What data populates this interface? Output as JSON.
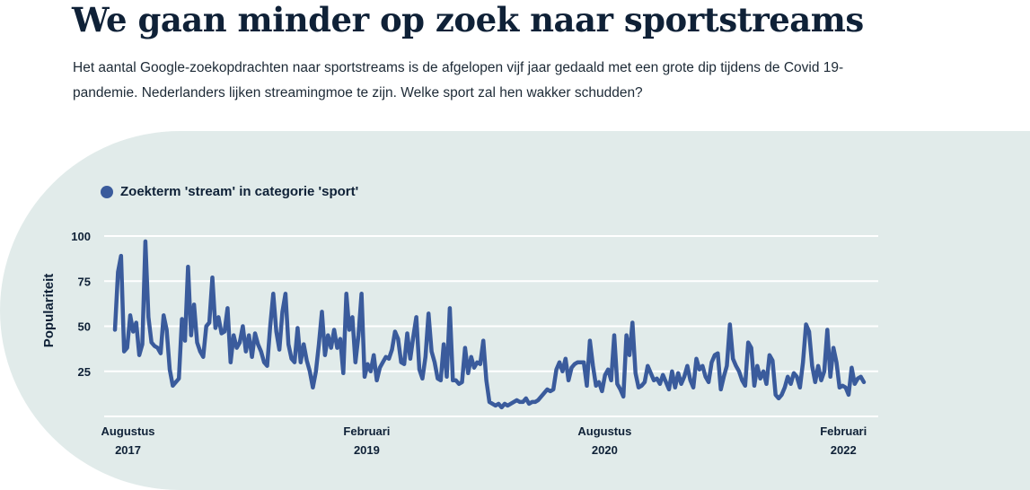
{
  "title": "We gaan minder op zoek naar sportstreams",
  "subtitle": "Het aantal Google-zoekopdrachten naar sportstreams is de afgelopen vijf jaar gedaald met een grote dip tijdens de Covid 19-pandemie. Nederlanders lijken streamingmoe te zijn. Welke sport zal hen wakker schudden?",
  "colors": {
    "line": "#3a5b9c",
    "panel": "#e1ebea",
    "text": "#0f2137"
  },
  "chart_data": {
    "type": "line",
    "ylabel": "Populariteit",
    "ylim": [
      0,
      100
    ],
    "yticks": [
      25,
      50,
      75,
      100
    ],
    "grid": true,
    "legend_position": "top-left",
    "xlim": [
      "2017-07-02",
      "2022-03-20"
    ],
    "xticks": [
      {
        "date": "2017-08-01",
        "month": "Augustus",
        "year": "2017"
      },
      {
        "date": "2019-02-01",
        "month": "Februari",
        "year": "2019"
      },
      {
        "date": "2020-08-01",
        "month": "Augustus",
        "year": "2020"
      },
      {
        "date": "2022-02-01",
        "month": "Februari",
        "year": "2022"
      }
    ],
    "series": [
      {
        "name": "Zoekterm 'stream' in categorie 'sport'",
        "color": "#3a5b9c",
        "points": [
          [
            "2017-07-02",
            48
          ],
          [
            "2017-07-09",
            80
          ],
          [
            "2017-07-16",
            89
          ],
          [
            "2017-07-23",
            36
          ],
          [
            "2017-07-30",
            38
          ],
          [
            "2017-08-06",
            56
          ],
          [
            "2017-08-13",
            47
          ],
          [
            "2017-08-20",
            52
          ],
          [
            "2017-08-27",
            34
          ],
          [
            "2017-09-03",
            40
          ],
          [
            "2017-09-10",
            97
          ],
          [
            "2017-09-17",
            55
          ],
          [
            "2017-09-24",
            41
          ],
          [
            "2017-10-01",
            39
          ],
          [
            "2017-10-08",
            38
          ],
          [
            "2017-10-15",
            35
          ],
          [
            "2017-10-22",
            56
          ],
          [
            "2017-10-29",
            48
          ],
          [
            "2017-11-05",
            26
          ],
          [
            "2017-11-12",
            17
          ],
          [
            "2017-11-19",
            19
          ],
          [
            "2017-11-26",
            21
          ],
          [
            "2017-12-03",
            54
          ],
          [
            "2017-12-10",
            42
          ],
          [
            "2017-12-17",
            83
          ],
          [
            "2017-12-24",
            45
          ],
          [
            "2017-12-31",
            62
          ],
          [
            "2018-01-07",
            41
          ],
          [
            "2018-01-14",
            36
          ],
          [
            "2018-01-21",
            33
          ],
          [
            "2018-01-28",
            50
          ],
          [
            "2018-02-04",
            52
          ],
          [
            "2018-02-11",
            77
          ],
          [
            "2018-02-18",
            49
          ],
          [
            "2018-02-25",
            55
          ],
          [
            "2018-03-04",
            46
          ],
          [
            "2018-03-11",
            47
          ],
          [
            "2018-03-18",
            60
          ],
          [
            "2018-03-25",
            30
          ],
          [
            "2018-04-01",
            45
          ],
          [
            "2018-04-08",
            38
          ],
          [
            "2018-04-15",
            41
          ],
          [
            "2018-04-22",
            50
          ],
          [
            "2018-04-29",
            36
          ],
          [
            "2018-05-06",
            45
          ],
          [
            "2018-05-13",
            33
          ],
          [
            "2018-05-20",
            46
          ],
          [
            "2018-05-27",
            40
          ],
          [
            "2018-06-03",
            36
          ],
          [
            "2018-06-10",
            30
          ],
          [
            "2018-06-17",
            28
          ],
          [
            "2018-06-24",
            50
          ],
          [
            "2018-07-01",
            68
          ],
          [
            "2018-07-08",
            47
          ],
          [
            "2018-07-15",
            37
          ],
          [
            "2018-07-22",
            58
          ],
          [
            "2018-07-29",
            68
          ],
          [
            "2018-08-05",
            40
          ],
          [
            "2018-08-12",
            32
          ],
          [
            "2018-08-19",
            30
          ],
          [
            "2018-08-26",
            49
          ],
          [
            "2018-09-02",
            30
          ],
          [
            "2018-09-09",
            40
          ],
          [
            "2018-09-16",
            31
          ],
          [
            "2018-09-23",
            25
          ],
          [
            "2018-09-30",
            16
          ],
          [
            "2018-10-07",
            25
          ],
          [
            "2018-10-14",
            40
          ],
          [
            "2018-10-21",
            58
          ],
          [
            "2018-10-28",
            34
          ],
          [
            "2018-11-04",
            45
          ],
          [
            "2018-11-11",
            38
          ],
          [
            "2018-11-18",
            48
          ],
          [
            "2018-11-25",
            38
          ],
          [
            "2018-12-02",
            43
          ],
          [
            "2018-12-09",
            24
          ],
          [
            "2018-12-16",
            68
          ],
          [
            "2018-12-23",
            48
          ],
          [
            "2018-12-30",
            55
          ],
          [
            "2019-01-06",
            30
          ],
          [
            "2019-01-13",
            45
          ],
          [
            "2019-01-20",
            68
          ],
          [
            "2019-01-27",
            22
          ],
          [
            "2019-02-03",
            29
          ],
          [
            "2019-02-10",
            25
          ],
          [
            "2019-02-17",
            34
          ],
          [
            "2019-02-24",
            20
          ],
          [
            "2019-03-03",
            27
          ],
          [
            "2019-03-10",
            30
          ],
          [
            "2019-03-17",
            33
          ],
          [
            "2019-03-24",
            32
          ],
          [
            "2019-03-31",
            37
          ],
          [
            "2019-04-07",
            47
          ],
          [
            "2019-04-14",
            43
          ],
          [
            "2019-04-21",
            30
          ],
          [
            "2019-04-28",
            29
          ],
          [
            "2019-05-05",
            46
          ],
          [
            "2019-05-12",
            32
          ],
          [
            "2019-05-19",
            44
          ],
          [
            "2019-05-26",
            55
          ],
          [
            "2019-06-02",
            26
          ],
          [
            "2019-06-09",
            21
          ],
          [
            "2019-06-16",
            33
          ],
          [
            "2019-06-23",
            57
          ],
          [
            "2019-06-30",
            36
          ],
          [
            "2019-07-07",
            30
          ],
          [
            "2019-07-14",
            21
          ],
          [
            "2019-07-21",
            20
          ],
          [
            "2019-07-28",
            40
          ],
          [
            "2019-08-04",
            22
          ],
          [
            "2019-08-11",
            60
          ],
          [
            "2019-08-18",
            20
          ],
          [
            "2019-08-25",
            20
          ],
          [
            "2019-09-01",
            18
          ],
          [
            "2019-09-08",
            19
          ],
          [
            "2019-09-15",
            38
          ],
          [
            "2019-09-22",
            24
          ],
          [
            "2019-09-29",
            33
          ],
          [
            "2019-10-06",
            27
          ],
          [
            "2019-10-13",
            30
          ],
          [
            "2019-10-20",
            29
          ],
          [
            "2019-10-27",
            42
          ],
          [
            "2019-11-03",
            20
          ],
          [
            "2019-11-10",
            8
          ],
          [
            "2019-11-17",
            7
          ],
          [
            "2019-11-24",
            6
          ],
          [
            "2019-12-01",
            7
          ],
          [
            "2019-12-08",
            5
          ],
          [
            "2019-12-15",
            7
          ],
          [
            "2019-12-22",
            6
          ],
          [
            "2019-12-29",
            7
          ],
          [
            "2020-01-05",
            8
          ],
          [
            "2020-01-12",
            9
          ],
          [
            "2020-01-19",
            8
          ],
          [
            "2020-01-26",
            8
          ],
          [
            "2020-02-02",
            10
          ],
          [
            "2020-02-09",
            7
          ],
          [
            "2020-02-16",
            8
          ],
          [
            "2020-02-23",
            8
          ],
          [
            "2020-03-01",
            9
          ],
          [
            "2020-03-08",
            11
          ],
          [
            "2020-03-15",
            13
          ],
          [
            "2020-03-22",
            15
          ],
          [
            "2020-03-29",
            14
          ],
          [
            "2020-04-05",
            15
          ],
          [
            "2020-04-12",
            26
          ],
          [
            "2020-04-19",
            30
          ],
          [
            "2020-04-26",
            25
          ],
          [
            "2020-05-03",
            32
          ],
          [
            "2020-05-10",
            20
          ],
          [
            "2020-05-17",
            27
          ],
          [
            "2020-05-24",
            29
          ],
          [
            "2020-05-31",
            30
          ],
          [
            "2020-06-07",
            30
          ],
          [
            "2020-06-14",
            30
          ],
          [
            "2020-06-21",
            17
          ],
          [
            "2020-06-28",
            42
          ],
          [
            "2020-07-05",
            28
          ],
          [
            "2020-07-12",
            17
          ],
          [
            "2020-07-19",
            19
          ],
          [
            "2020-07-26",
            14
          ],
          [
            "2020-08-02",
            23
          ],
          [
            "2020-08-09",
            26
          ],
          [
            "2020-08-16",
            20
          ],
          [
            "2020-08-23",
            45
          ],
          [
            "2020-08-30",
            18
          ],
          [
            "2020-09-06",
            15
          ],
          [
            "2020-09-13",
            11
          ],
          [
            "2020-09-20",
            45
          ],
          [
            "2020-09-27",
            34
          ],
          [
            "2020-10-04",
            52
          ],
          [
            "2020-10-11",
            24
          ],
          [
            "2020-10-18",
            16
          ],
          [
            "2020-10-25",
            17
          ],
          [
            "2020-11-01",
            19
          ],
          [
            "2020-11-08",
            28
          ],
          [
            "2020-11-15",
            24
          ],
          [
            "2020-11-22",
            20
          ],
          [
            "2020-11-29",
            21
          ],
          [
            "2020-12-06",
            18
          ],
          [
            "2020-12-13",
            23
          ],
          [
            "2020-12-20",
            19
          ],
          [
            "2020-12-27",
            15
          ],
          [
            "2021-01-03",
            25
          ],
          [
            "2021-01-10",
            16
          ],
          [
            "2021-01-17",
            24
          ],
          [
            "2021-01-24",
            18
          ],
          [
            "2021-01-31",
            22
          ],
          [
            "2021-02-07",
            28
          ],
          [
            "2021-02-14",
            20
          ],
          [
            "2021-02-21",
            16
          ],
          [
            "2021-02-28",
            32
          ],
          [
            "2021-03-07",
            26
          ],
          [
            "2021-03-14",
            28
          ],
          [
            "2021-03-21",
            22
          ],
          [
            "2021-03-28",
            19
          ],
          [
            "2021-04-04",
            30
          ],
          [
            "2021-04-11",
            34
          ],
          [
            "2021-04-18",
            35
          ],
          [
            "2021-04-25",
            15
          ],
          [
            "2021-05-02",
            22
          ],
          [
            "2021-05-09",
            28
          ],
          [
            "2021-05-16",
            51
          ],
          [
            "2021-05-23",
            32
          ],
          [
            "2021-05-30",
            28
          ],
          [
            "2021-06-06",
            25
          ],
          [
            "2021-06-13",
            20
          ],
          [
            "2021-06-20",
            17
          ],
          [
            "2021-06-27",
            41
          ],
          [
            "2021-07-04",
            38
          ],
          [
            "2021-07-11",
            17
          ],
          [
            "2021-07-18",
            28
          ],
          [
            "2021-07-25",
            21
          ],
          [
            "2021-08-01",
            25
          ],
          [
            "2021-08-08",
            18
          ],
          [
            "2021-08-15",
            34
          ],
          [
            "2021-08-22",
            31
          ],
          [
            "2021-08-29",
            12
          ],
          [
            "2021-09-05",
            10
          ],
          [
            "2021-09-12",
            12
          ],
          [
            "2021-09-19",
            16
          ],
          [
            "2021-09-26",
            22
          ],
          [
            "2021-10-03",
            18
          ],
          [
            "2021-10-10",
            24
          ],
          [
            "2021-10-17",
            22
          ],
          [
            "2021-10-24",
            16
          ],
          [
            "2021-10-31",
            30
          ],
          [
            "2021-11-07",
            51
          ],
          [
            "2021-11-14",
            47
          ],
          [
            "2021-11-21",
            28
          ],
          [
            "2021-11-28",
            19
          ],
          [
            "2021-12-05",
            28
          ],
          [
            "2021-12-12",
            20
          ],
          [
            "2021-12-19",
            25
          ],
          [
            "2021-12-26",
            48
          ],
          [
            "2022-01-02",
            22
          ],
          [
            "2022-01-09",
            38
          ],
          [
            "2022-01-16",
            30
          ],
          [
            "2022-01-23",
            16
          ],
          [
            "2022-01-30",
            17
          ],
          [
            "2022-02-06",
            16
          ],
          [
            "2022-02-13",
            12
          ],
          [
            "2022-02-20",
            27
          ],
          [
            "2022-02-27",
            18
          ],
          [
            "2022-03-06",
            21
          ],
          [
            "2022-03-13",
            22
          ],
          [
            "2022-03-20",
            19
          ]
        ]
      }
    ]
  }
}
